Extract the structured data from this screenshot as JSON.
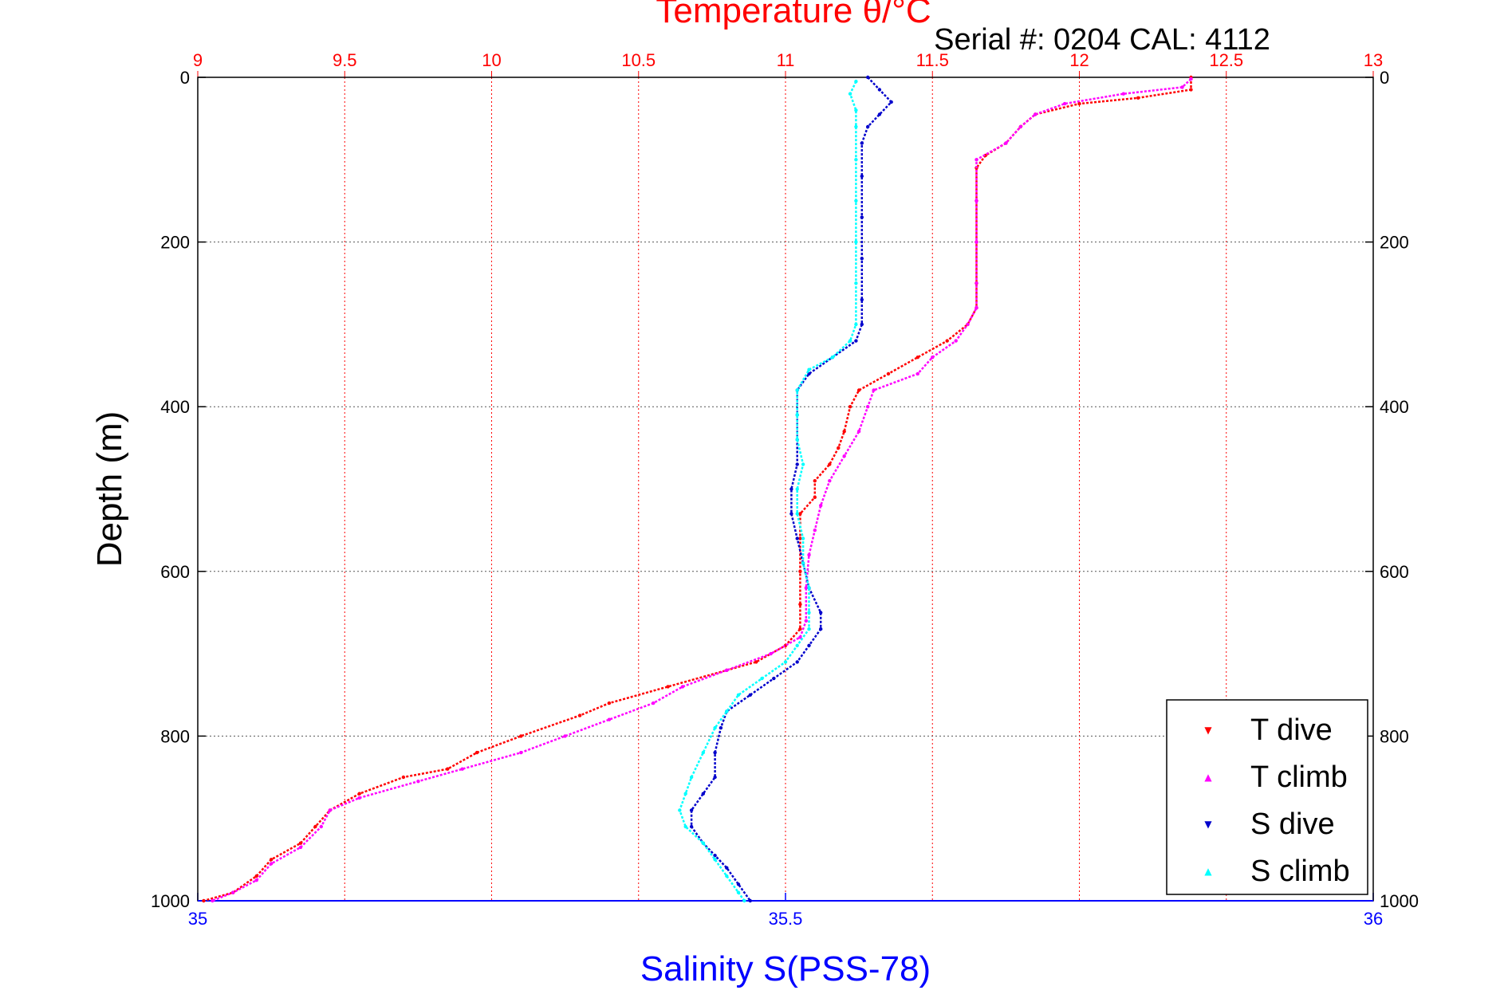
{
  "colors": {
    "temp_axis": "#ff0000",
    "sal_axis": "#0000ff",
    "t_dive": "#ff0000",
    "t_climb": "#ff00ff",
    "s_dive": "#0000cc",
    "s_climb": "#00ffff",
    "grid": "#555555"
  },
  "chart_data": {
    "type": "scatter",
    "title_top": "Temperature θ/°C",
    "serial_text": "Serial #: 0204  CAL: 4112",
    "ylabel": "Depth (m)",
    "xlabel_bottom": "Salinity S(PSS-78)",
    "y_range": [
      0,
      1000
    ],
    "y_reversed": true,
    "y_ticks": [
      "0",
      "200",
      "400",
      "600",
      "800",
      "1000"
    ],
    "temp_range": [
      9,
      13
    ],
    "temp_ticks": [
      "9",
      "9.5",
      "10",
      "10.5",
      "11",
      "11.5",
      "12",
      "12.5",
      "13"
    ],
    "sal_range": [
      35,
      36
    ],
    "sal_ticks": [
      "35",
      "35.5",
      "36"
    ],
    "grid": true,
    "legend_position": "bottom-right",
    "legend": [
      {
        "label": "T dive",
        "marker": "▼",
        "color_key": "t_dive"
      },
      {
        "label": "T climb",
        "marker": "▲",
        "color_key": "t_climb"
      },
      {
        "label": "S dive",
        "marker": "▼",
        "color_key": "s_dive"
      },
      {
        "label": "S climb",
        "marker": "▲",
        "color_key": "s_climb"
      }
    ],
    "series": [
      {
        "name": "T dive",
        "axis": "temp",
        "color_key": "t_dive",
        "points": [
          [
            12.38,
            0
          ],
          [
            12.38,
            15
          ],
          [
            12.2,
            25
          ],
          [
            12.0,
            32
          ],
          [
            11.85,
            45
          ],
          [
            11.8,
            60
          ],
          [
            11.75,
            80
          ],
          [
            11.68,
            95
          ],
          [
            11.65,
            110
          ],
          [
            11.65,
            150
          ],
          [
            11.65,
            200
          ],
          [
            11.65,
            250
          ],
          [
            11.65,
            280
          ],
          [
            11.62,
            300
          ],
          [
            11.55,
            320
          ],
          [
            11.45,
            340
          ],
          [
            11.35,
            360
          ],
          [
            11.25,
            380
          ],
          [
            11.22,
            400
          ],
          [
            11.2,
            430
          ],
          [
            11.18,
            450
          ],
          [
            11.15,
            470
          ],
          [
            11.1,
            490
          ],
          [
            11.1,
            510
          ],
          [
            11.05,
            530
          ],
          [
            11.05,
            560
          ],
          [
            11.05,
            600
          ],
          [
            11.05,
            640
          ],
          [
            11.05,
            670
          ],
          [
            11.0,
            690
          ],
          [
            10.9,
            710
          ],
          [
            10.8,
            720
          ],
          [
            10.6,
            740
          ],
          [
            10.4,
            760
          ],
          [
            10.3,
            775
          ],
          [
            10.1,
            800
          ],
          [
            9.95,
            820
          ],
          [
            9.85,
            840
          ],
          [
            9.7,
            850
          ],
          [
            9.55,
            870
          ],
          [
            9.45,
            890
          ],
          [
            9.4,
            910
          ],
          [
            9.35,
            930
          ],
          [
            9.25,
            950
          ],
          [
            9.2,
            970
          ],
          [
            9.12,
            990
          ],
          [
            9.02,
            1000
          ]
        ]
      },
      {
        "name": "T climb",
        "axis": "temp",
        "color_key": "t_climb",
        "points": [
          [
            12.38,
            2
          ],
          [
            12.35,
            12
          ],
          [
            12.15,
            20
          ],
          [
            11.95,
            32
          ],
          [
            11.85,
            45
          ],
          [
            11.8,
            60
          ],
          [
            11.75,
            80
          ],
          [
            11.65,
            100
          ],
          [
            11.65,
            150
          ],
          [
            11.65,
            200
          ],
          [
            11.65,
            250
          ],
          [
            11.65,
            280
          ],
          [
            11.62,
            300
          ],
          [
            11.58,
            320
          ],
          [
            11.5,
            340
          ],
          [
            11.45,
            360
          ],
          [
            11.3,
            380
          ],
          [
            11.28,
            400
          ],
          [
            11.25,
            430
          ],
          [
            11.2,
            460
          ],
          [
            11.15,
            490
          ],
          [
            11.12,
            520
          ],
          [
            11.1,
            550
          ],
          [
            11.08,
            580
          ],
          [
            11.07,
            620
          ],
          [
            11.07,
            660
          ],
          [
            11.05,
            680
          ],
          [
            10.95,
            700
          ],
          [
            10.8,
            720
          ],
          [
            10.65,
            740
          ],
          [
            10.55,
            760
          ],
          [
            10.4,
            780
          ],
          [
            10.25,
            800
          ],
          [
            10.1,
            820
          ],
          [
            9.9,
            840
          ],
          [
            9.75,
            855
          ],
          [
            9.55,
            875
          ],
          [
            9.45,
            890
          ],
          [
            9.42,
            910
          ],
          [
            9.35,
            935
          ],
          [
            9.25,
            955
          ],
          [
            9.2,
            975
          ],
          [
            9.12,
            990
          ],
          [
            9.05,
            1000
          ]
        ]
      },
      {
        "name": "S dive",
        "axis": "sal",
        "color_key": "s_dive",
        "points": [
          [
            35.57,
            0
          ],
          [
            35.58,
            15
          ],
          [
            35.59,
            30
          ],
          [
            35.58,
            45
          ],
          [
            35.57,
            60
          ],
          [
            35.565,
            80
          ],
          [
            35.565,
            120
          ],
          [
            35.565,
            170
          ],
          [
            35.565,
            220
          ],
          [
            35.565,
            270
          ],
          [
            35.565,
            300
          ],
          [
            35.56,
            320
          ],
          [
            35.54,
            340
          ],
          [
            35.52,
            360
          ],
          [
            35.51,
            380
          ],
          [
            35.51,
            410
          ],
          [
            35.51,
            440
          ],
          [
            35.51,
            470
          ],
          [
            35.505,
            500
          ],
          [
            35.505,
            530
          ],
          [
            35.51,
            560
          ],
          [
            35.515,
            590
          ],
          [
            35.52,
            620
          ],
          [
            35.53,
            650
          ],
          [
            35.53,
            670
          ],
          [
            35.52,
            690
          ],
          [
            35.51,
            710
          ],
          [
            35.49,
            730
          ],
          [
            35.47,
            750
          ],
          [
            35.45,
            770
          ],
          [
            35.445,
            790
          ],
          [
            35.44,
            820
          ],
          [
            35.44,
            850
          ],
          [
            35.43,
            870
          ],
          [
            35.42,
            890
          ],
          [
            35.42,
            910
          ],
          [
            35.43,
            930
          ],
          [
            35.44,
            945
          ],
          [
            35.45,
            960
          ],
          [
            35.46,
            980
          ],
          [
            35.47,
            1000
          ]
        ]
      },
      {
        "name": "S climb",
        "axis": "sal",
        "color_key": "s_climb",
        "points": [
          [
            35.56,
            5
          ],
          [
            35.555,
            20
          ],
          [
            35.56,
            40
          ],
          [
            35.56,
            60
          ],
          [
            35.56,
            100
          ],
          [
            35.56,
            150
          ],
          [
            35.56,
            200
          ],
          [
            35.56,
            250
          ],
          [
            35.56,
            300
          ],
          [
            35.555,
            320
          ],
          [
            35.54,
            340
          ],
          [
            35.52,
            355
          ],
          [
            35.51,
            380
          ],
          [
            35.51,
            410
          ],
          [
            35.51,
            440
          ],
          [
            35.515,
            470
          ],
          [
            35.51,
            500
          ],
          [
            35.51,
            530
          ],
          [
            35.515,
            560
          ],
          [
            35.515,
            590
          ],
          [
            35.52,
            620
          ],
          [
            35.52,
            650
          ],
          [
            35.52,
            670
          ],
          [
            35.51,
            690
          ],
          [
            35.5,
            710
          ],
          [
            35.48,
            730
          ],
          [
            35.46,
            750
          ],
          [
            35.45,
            770
          ],
          [
            35.44,
            790
          ],
          [
            35.43,
            820
          ],
          [
            35.42,
            850
          ],
          [
            35.415,
            870
          ],
          [
            35.41,
            890
          ],
          [
            35.415,
            910
          ],
          [
            35.43,
            930
          ],
          [
            35.44,
            950
          ],
          [
            35.45,
            970
          ],
          [
            35.46,
            990
          ],
          [
            35.465,
            1000
          ]
        ]
      }
    ]
  }
}
